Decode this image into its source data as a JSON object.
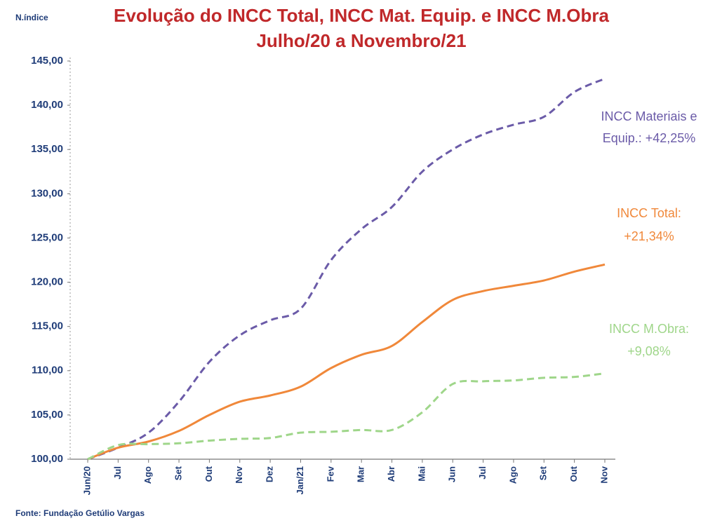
{
  "chart_data": {
    "type": "line",
    "title": [
      "Evolução do INCC Total, INCC Mat. Equip.  e INCC M.Obra",
      "Julho/20  a Novembro/21"
    ],
    "y_label": "N.índice",
    "source": "Fonte: Fundação Getúlio Vargas",
    "categories": [
      "Jun/20",
      "Jul",
      "Ago",
      "Set",
      "Out",
      "Nov",
      "Dez",
      "Jan/21",
      "Fev",
      "Mar",
      "Abr",
      "Mai",
      "Jun",
      "Jul",
      "Ago",
      "Set",
      "Out",
      "Nov"
    ],
    "series": [
      {
        "annotation": [
          "INCC Materiais e",
          "Equip.:  +42,25%"
        ],
        "color": "#6b5ba8",
        "dashed": true,
        "values": [
          100,
          101.3,
          103,
          106.5,
          111,
          114,
          115.7,
          117,
          122.5,
          126,
          128.5,
          132.5,
          135,
          136.7,
          137.8,
          138.7,
          141.5,
          143
        ]
      },
      {
        "annotation": [
          "INCC Total:",
          "+21,34%"
        ],
        "color": "#f0883a",
        "dashed": false,
        "values": [
          100,
          101.3,
          102,
          103.2,
          105,
          106.5,
          107.2,
          108.2,
          110.3,
          111.8,
          112.8,
          115.5,
          118,
          119,
          119.6,
          120.2,
          121.2,
          122
        ]
      },
      {
        "annotation": [
          "INCC M.Obra:",
          "+9,08%"
        ],
        "color": "#9fd68a",
        "dashed": true,
        "values": [
          100,
          101.6,
          101.7,
          101.8,
          102.1,
          102.3,
          102.4,
          103,
          103.1,
          103.3,
          103.3,
          105.3,
          108.5,
          108.8,
          108.9,
          109.2,
          109.3,
          109.7
        ]
      }
    ],
    "ylim": [
      100,
      145
    ],
    "yticks": [
      {
        "value": 100,
        "label": "100,00"
      },
      {
        "value": 105,
        "label": "105,00"
      },
      {
        "value": 110,
        "label": "110,00"
      },
      {
        "value": 115,
        "label": "115,00"
      },
      {
        "value": 120,
        "label": "120,00"
      },
      {
        "value": 125,
        "label": "125,00"
      },
      {
        "value": 130,
        "label": "130,00"
      },
      {
        "value": 135,
        "label": "135,00"
      },
      {
        "value": 140,
        "label": "140,00"
      },
      {
        "value": 145,
        "label": "145,00"
      }
    ]
  }
}
